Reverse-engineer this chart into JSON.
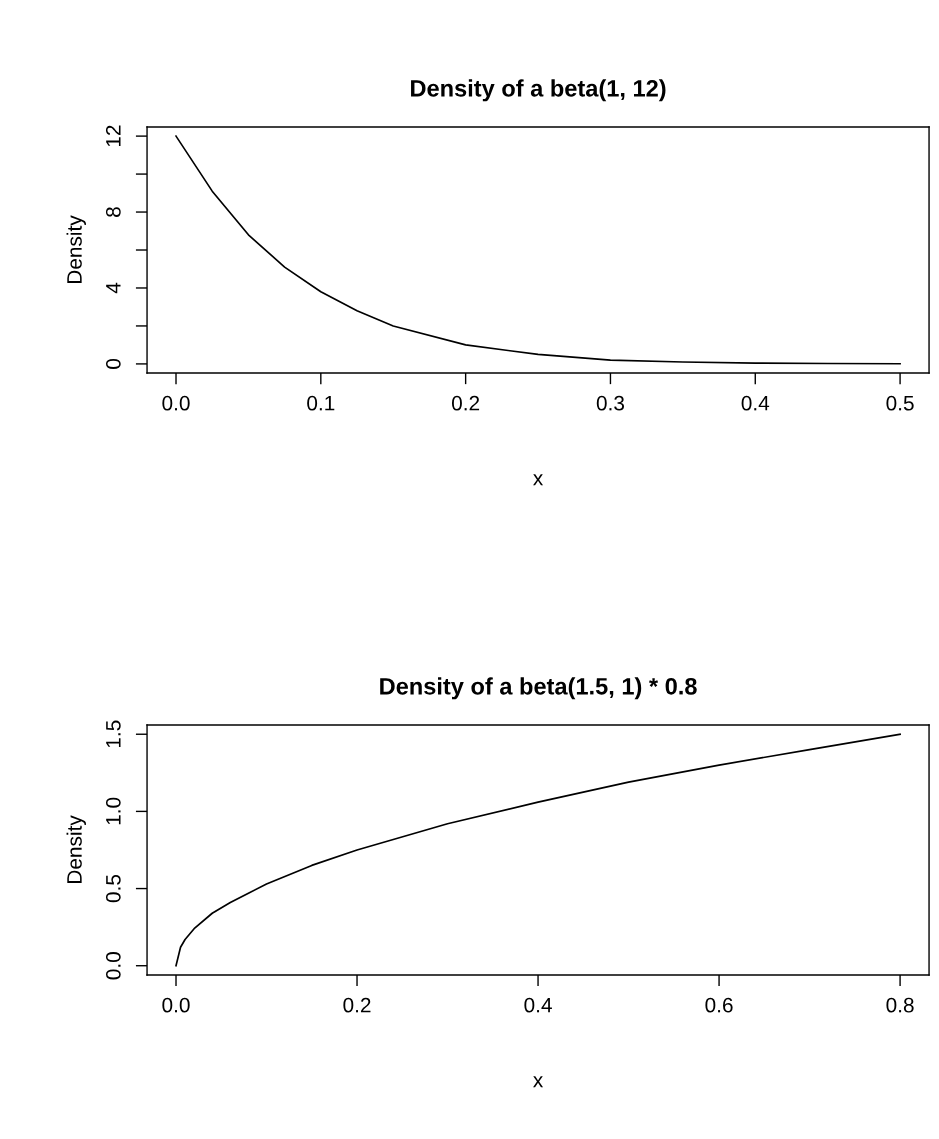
{
  "chart_data": [
    {
      "type": "line",
      "title": "Density of a beta(1, 12)",
      "xlabel": "x",
      "ylabel": "Density",
      "series": [
        {
          "color": "#000000",
          "x": [
            0,
            0.025,
            0.05,
            0.075,
            0.1,
            0.125,
            0.15,
            0.2,
            0.25,
            0.3,
            0.35,
            0.4,
            0.45,
            0.5
          ],
          "values": [
            12,
            9.1,
            6.8,
            5.1,
            3.8,
            2.8,
            2.0,
            1.0,
            0.5,
            0.2,
            0.1,
            0.04,
            0.02,
            0.01
          ]
        }
      ],
      "xlim": [
        -0.02,
        0.52
      ],
      "ylim": [
        -0.48,
        12.48
      ],
      "xticks": [
        {
          "value": 0,
          "label": "0.0"
        },
        0.1,
        0.2,
        0.3,
        0.4,
        0.5
      ],
      "yticks": [
        0,
        {
          "value": 2,
          "label": null
        },
        4,
        {
          "value": 6,
          "label": null
        },
        8,
        {
          "value": 10,
          "label": null
        },
        12
      ],
      "grid": false,
      "line_style": "solid"
    },
    {
      "type": "line",
      "title": "Density of a beta(1.5, 1) * 0.8",
      "xlabel": "x",
      "ylabel": "Density",
      "series": [
        {
          "color": "#000000",
          "x": [
            0,
            0.005,
            0.01,
            0.02,
            0.04,
            0.06,
            0.08,
            0.1,
            0.15,
            0.2,
            0.3,
            0.4,
            0.5,
            0.6,
            0.7,
            0.8
          ],
          "values": [
            0,
            0.12,
            0.17,
            0.24,
            0.34,
            0.41,
            0.47,
            0.53,
            0.65,
            0.75,
            0.92,
            1.06,
            1.19,
            1.3,
            1.4,
            1.5
          ]
        }
      ],
      "xlim": [
        -0.032,
        0.832
      ],
      "ylim": [
        -0.06,
        1.56
      ],
      "xticks": [
        {
          "value": 0,
          "label": "0.0"
        },
        0.2,
        0.4,
        0.6,
        0.8
      ],
      "yticks": [
        {
          "value": 0,
          "label": "0.0"
        },
        0.5,
        {
          "value": 1,
          "label": "1.0"
        },
        1.5
      ],
      "grid": false,
      "line_style": "solid"
    }
  ]
}
